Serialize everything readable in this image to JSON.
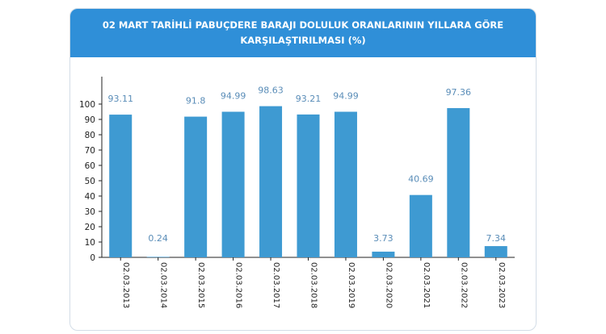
{
  "header": {
    "title_line1": "02 MART TARİHLİ PABUÇDERE BARAJI DOLULUK ORANLARININ YILLARA GÖRE",
    "title_line2": "KARŞILAŞTIRILMASI (%)"
  },
  "colors": {
    "header": "#2f8fd8",
    "bar": "#3e9ad2",
    "axis": "#222222",
    "data_label": "#5a8db8"
  },
  "chart_data": {
    "type": "bar",
    "title": "02 MART TARİHLİ PABUÇDERE BARAJI DOLULUK ORANLARININ YILLARA GÖRE KARŞILAŞTIRILMASI (%)",
    "categories": [
      "02.03.2013",
      "02.03.2014",
      "02.03.2015",
      "02.03.2016",
      "02.03.2017",
      "02.03.2018",
      "02.03.2019",
      "02.03.2020",
      "02.03.2021",
      "02.03.2022",
      "02.03.2023"
    ],
    "values": [
      93.11,
      0.24,
      91.8,
      94.99,
      98.63,
      93.21,
      94.99,
      3.73,
      40.69,
      97.36,
      7.34
    ],
    "data_labels": [
      "93.11",
      "0.24",
      "91.8",
      "94.99",
      "98.63",
      "93.21",
      "94.99",
      "3.73",
      "40.69",
      "97.36",
      "7.34"
    ],
    "yticks": [
      "0",
      "10",
      "20",
      "30",
      "40",
      "50",
      "60",
      "70",
      "80",
      "90",
      "100"
    ],
    "ylim": [
      0,
      100
    ],
    "grid": false,
    "legend": "none"
  }
}
